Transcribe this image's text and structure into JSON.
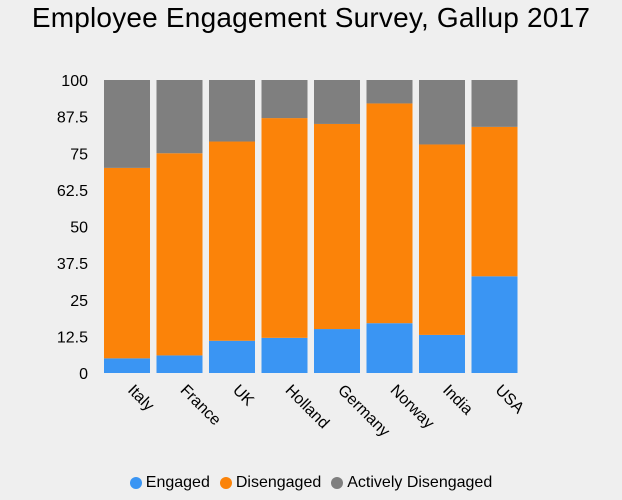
{
  "chart_data": {
    "type": "bar",
    "stacked": true,
    "title": "Employee Engagement Survey, Gallup 2017",
    "categories": [
      "Italy",
      "France",
      "UK",
      "Holland",
      "Germany",
      "Norway",
      "India",
      "USA"
    ],
    "series": [
      {
        "name": "Engaged",
        "color": "#3a95f3",
        "values": [
          5,
          6,
          11,
          12,
          15,
          17,
          13,
          33
        ]
      },
      {
        "name": "Disengaged",
        "color": "#fb8309",
        "values": [
          65,
          69,
          68,
          75,
          70,
          75,
          65,
          51
        ]
      },
      {
        "name": "Actively Disengaged",
        "color": "#7f7f7f",
        "values": [
          30,
          25,
          21,
          13,
          15,
          8,
          22,
          16
        ]
      }
    ],
    "yticks": [
      "0",
      "12.5",
      "25",
      "37.5",
      "50",
      "62.5",
      "75",
      "87.5",
      "100"
    ],
    "ylim": [
      0,
      100
    ],
    "grid": false,
    "legend_position": "bottom"
  }
}
